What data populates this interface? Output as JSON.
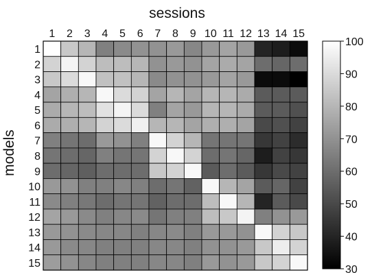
{
  "chart_data": {
    "type": "heatmap",
    "xlabel": "sessions",
    "ylabel": "models",
    "x": [
      "1",
      "2",
      "3",
      "4",
      "5",
      "6",
      "7",
      "8",
      "9",
      "10",
      "11",
      "12",
      "13",
      "14",
      "15"
    ],
    "y": [
      "1",
      "2",
      "3",
      "4",
      "5",
      "6",
      "7",
      "8",
      "9",
      "10",
      "11",
      "12",
      "13",
      "14",
      "15"
    ],
    "values": [
      [
        100,
        85,
        80,
        65,
        68,
        70,
        70,
        72,
        67,
        72,
        75,
        72,
        40,
        38,
        33
      ],
      [
        88,
        97,
        88,
        82,
        82,
        80,
        70,
        72,
        70,
        75,
        77,
        75,
        60,
        58,
        60
      ],
      [
        85,
        90,
        98,
        83,
        83,
        80,
        68,
        70,
        70,
        72,
        75,
        72,
        33,
        33,
        30
      ],
      [
        75,
        78,
        80,
        98,
        90,
        88,
        75,
        80,
        75,
        80,
        80,
        77,
        55,
        55,
        55
      ],
      [
        77,
        80,
        82,
        92,
        97,
        90,
        65,
        75,
        72,
        80,
        80,
        77,
        55,
        55,
        52
      ],
      [
        77,
        78,
        80,
        88,
        90,
        96,
        80,
        80,
        75,
        78,
        78,
        75,
        50,
        52,
        48
      ],
      [
        65,
        62,
        60,
        72,
        70,
        65,
        98,
        88,
        80,
        62,
        62,
        62,
        45,
        48,
        42
      ],
      [
        62,
        60,
        58,
        65,
        62,
        62,
        88,
        98,
        88,
        60,
        62,
        58,
        38,
        48,
        45
      ],
      [
        60,
        58,
        56,
        60,
        60,
        60,
        85,
        88,
        98,
        55,
        60,
        55,
        45,
        50,
        48
      ],
      [
        72,
        70,
        65,
        65,
        67,
        65,
        60,
        62,
        57,
        98,
        80,
        75,
        55,
        58,
        48
      ],
      [
        68,
        65,
        63,
        60,
        62,
        62,
        57,
        60,
        60,
        82,
        98,
        80,
        40,
        55,
        50
      ],
      [
        75,
        72,
        68,
        65,
        67,
        68,
        62,
        65,
        65,
        82,
        85,
        97,
        65,
        70,
        72
      ],
      [
        72,
        70,
        68,
        67,
        67,
        65,
        67,
        68,
        65,
        72,
        72,
        70,
        98,
        88,
        85
      ],
      [
        72,
        68,
        67,
        65,
        65,
        65,
        67,
        67,
        65,
        70,
        70,
        72,
        85,
        95,
        88
      ],
      [
        73,
        70,
        67,
        65,
        65,
        65,
        67,
        67,
        65,
        72,
        70,
        72,
        85,
        88,
        98
      ]
    ],
    "colorbar": {
      "min": 30,
      "max": 100,
      "ticks": [
        100,
        90,
        80,
        70,
        60,
        50,
        40,
        30
      ],
      "colormap": "gray"
    },
    "grid": true
  }
}
